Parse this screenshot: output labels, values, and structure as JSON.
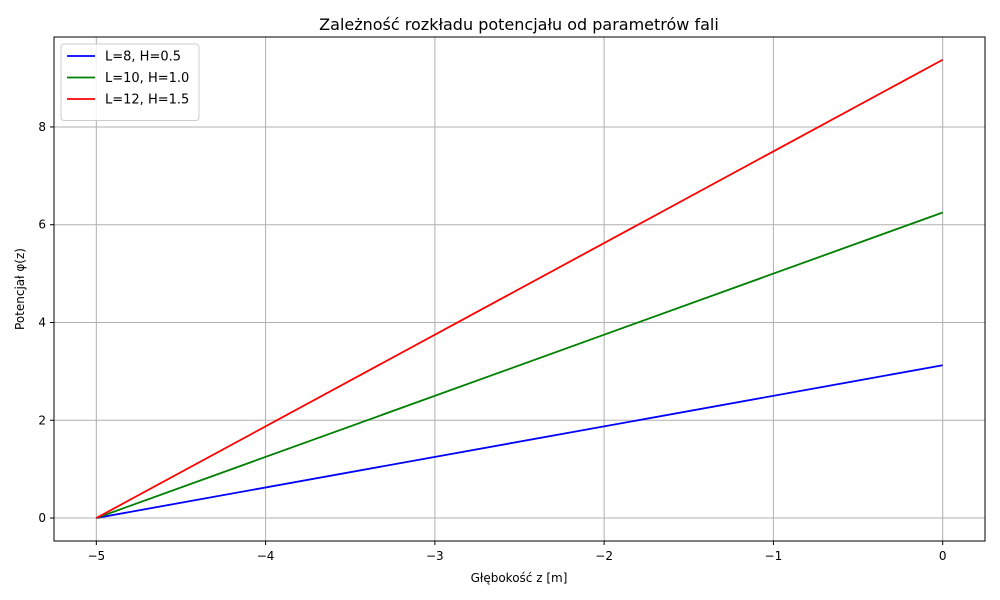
{
  "chart_data": {
    "type": "line",
    "title": "Zależność rozkładu potencjału od parametrów fali",
    "xlabel": "Głębokość z [m]",
    "ylabel": "Potencjał φ(z)",
    "xlim": [
      -5.25,
      0.25
    ],
    "ylim": [
      -0.47,
      9.84
    ],
    "xticks": [
      -5,
      -4,
      -3,
      -2,
      -1,
      0
    ],
    "xtick_labels": [
      "−5",
      "−4",
      "−3",
      "−2",
      "−1",
      "0"
    ],
    "yticks": [
      0,
      2,
      4,
      6,
      8
    ],
    "ytick_labels": [
      "0",
      "2",
      "4",
      "6",
      "8"
    ],
    "grid": true,
    "legend_position": "top-left",
    "series": [
      {
        "name": "L=8, H=0.5",
        "color": "#0000ff",
        "x": [
          -5,
          0
        ],
        "y": [
          0,
          3.125
        ]
      },
      {
        "name": "L=10, H=1.0",
        "color": "#008000",
        "x": [
          -5,
          0
        ],
        "y": [
          0,
          6.25
        ]
      },
      {
        "name": "L=12, H=1.5",
        "color": "#ff0000",
        "x": [
          -5,
          0
        ],
        "y": [
          0,
          9.375
        ]
      }
    ]
  }
}
